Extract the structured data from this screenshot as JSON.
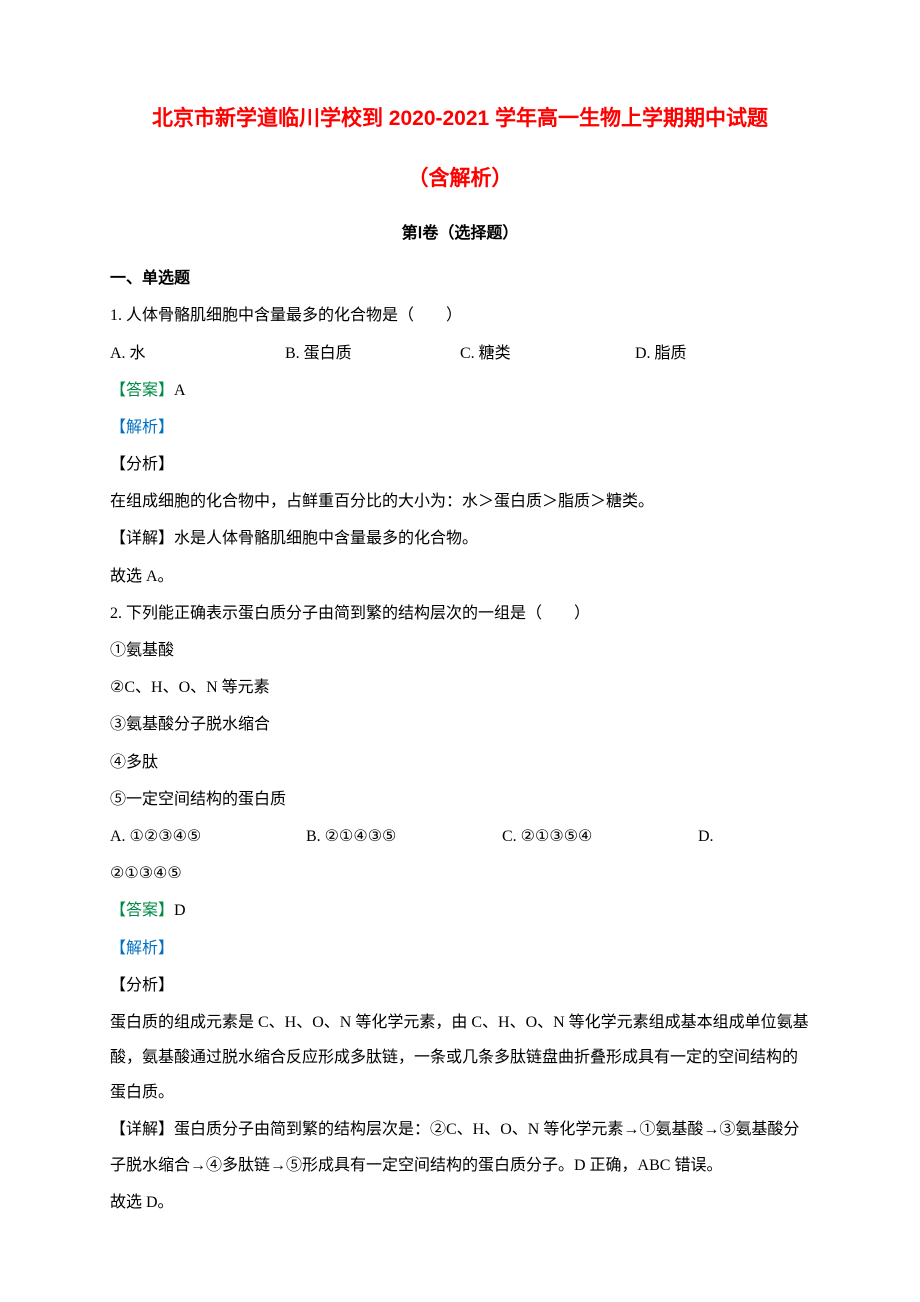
{
  "title": {
    "line1": "北京市新学道临川学校到 2020-2021 学年高一生物上学期期中试题",
    "line2": "（含解析）"
  },
  "section_label": "第Ⅰ卷（选择题）",
  "heading1": "一、单选题",
  "q1": {
    "text": "1. 人体骨骼肌细胞中含量最多的化合物是（　　）",
    "optA": "A. 水",
    "optB": "B. 蛋白质",
    "optC": "C. 糖类",
    "optD": "D. 脂质",
    "answer_label": "【答案】",
    "answer_value": "A",
    "analysis_label": "【解析】",
    "fenxi": "【分析】",
    "fenxi_body": "在组成细胞的化合物中，占鲜重百分比的大小为：水＞蛋白质＞脂质＞糖类。",
    "detail": "【详解】水是人体骨骼肌细胞中含量最多的化合物。",
    "conclusion": "故选 A。"
  },
  "q2": {
    "text": "2. 下列能正确表示蛋白质分子由简到繁的结构层次的一组是（　　）",
    "item1": "①氨基酸",
    "item2": "②C、H、O、N 等元素",
    "item3": "③氨基酸分子脱水缩合",
    "item4": "④多肽",
    "item5": "⑤一定空间结构的蛋白质",
    "optA": "A. ①②③④⑤",
    "optB": "B. ②①④③⑤",
    "optC": "C. ②①③⑤④",
    "optD": "D.",
    "optD_cont": "②①③④⑤",
    "answer_label": "【答案】",
    "answer_value": "D",
    "analysis_label": "【解析】",
    "fenxi": "【分析】",
    "fenxi_body": "蛋白质的组成元素是 C、H、O、N 等化学元素，由 C、H、O、N 等化学元素组成基本组成单位氨基酸，氨基酸通过脱水缩合反应形成多肽链，一条或几条多肽链盘曲折叠形成具有一定的空间结构的蛋白质。",
    "detail": "【详解】蛋白质分子由简到繁的结构层次是：②C、H、O、N 等化学元素→①氨基酸→③氨基酸分子脱水缩合→④多肽链→⑤形成具有一定空间结构的蛋白质分子。D 正确，ABC 错误。",
    "conclusion": "故选 D。"
  }
}
